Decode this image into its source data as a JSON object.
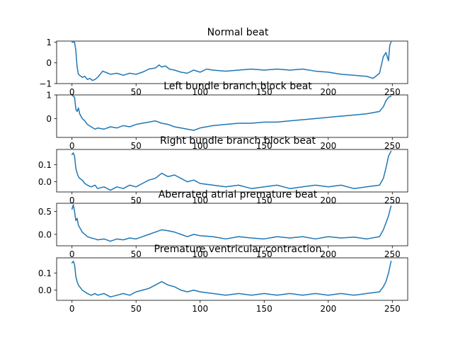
{
  "chart_data": [
    {
      "type": "line",
      "title": "Normal beat",
      "xlim": [
        -12,
        262
      ],
      "ylim": [
        -1.0,
        1.05
      ],
      "xticks": [
        0,
        50,
        100,
        150,
        200,
        250
      ],
      "xtick_labels": [
        "0",
        "50",
        "100",
        "150",
        "200",
        "250"
      ],
      "yticks": [
        -1,
        0,
        1
      ],
      "ytick_labels": [
        "−1",
        "0",
        "1"
      ],
      "grid": false,
      "series": [
        {
          "color": "#1f77b4",
          "x": [
            0,
            1,
            2,
            3,
            4,
            5,
            6,
            8,
            10,
            12,
            14,
            16,
            18,
            20,
            22,
            24,
            26,
            28,
            30,
            35,
            40,
            45,
            50,
            55,
            60,
            65,
            68,
            70,
            73,
            76,
            80,
            85,
            90,
            95,
            100,
            105,
            110,
            120,
            130,
            140,
            150,
            160,
            170,
            180,
            190,
            200,
            210,
            220,
            230,
            235,
            240,
            243,
            245,
            247,
            248,
            249
          ],
          "y": [
            1.0,
            1.0,
            1.0,
            0.6,
            -0.2,
            -0.55,
            -0.6,
            -0.7,
            -0.65,
            -0.8,
            -0.75,
            -0.85,
            -0.8,
            -0.7,
            -0.55,
            -0.4,
            -0.45,
            -0.5,
            -0.55,
            -0.5,
            -0.6,
            -0.5,
            -0.55,
            -0.45,
            -0.3,
            -0.25,
            -0.1,
            -0.2,
            -0.15,
            -0.3,
            -0.35,
            -0.45,
            -0.5,
            -0.35,
            -0.45,
            -0.3,
            -0.35,
            -0.4,
            -0.35,
            -0.3,
            -0.35,
            -0.3,
            -0.35,
            -0.3,
            -0.4,
            -0.45,
            -0.55,
            -0.6,
            -0.65,
            -0.75,
            -0.5,
            0.3,
            0.5,
            0.1,
            0.85,
            1.0
          ]
        }
      ]
    },
    {
      "type": "line",
      "title": "Left bundle branch block beat",
      "xlim": [
        -12,
        262
      ],
      "ylim": [
        -0.8,
        1.0
      ],
      "xticks": [
        0,
        50,
        100,
        150,
        200,
        250
      ],
      "xtick_labels": [
        "0",
        "50",
        "100",
        "150",
        "200",
        "250"
      ],
      "yticks": [
        0,
        1
      ],
      "ytick_labels": [
        "0",
        "1"
      ],
      "grid": false,
      "series": [
        {
          "color": "#1f77b4",
          "x": [
            0,
            1,
            2,
            3,
            4,
            5,
            6,
            8,
            10,
            12,
            15,
            18,
            20,
            25,
            30,
            35,
            40,
            45,
            50,
            55,
            60,
            65,
            70,
            75,
            80,
            85,
            90,
            95,
            100,
            110,
            120,
            130,
            140,
            150,
            160,
            170,
            180,
            190,
            200,
            210,
            220,
            230,
            240,
            243,
            245,
            247,
            249
          ],
          "y": [
            1.0,
            0.95,
            0.9,
            0.4,
            0.3,
            0.45,
            0.2,
            0.0,
            -0.1,
            -0.25,
            -0.35,
            -0.45,
            -0.4,
            -0.45,
            -0.35,
            -0.4,
            -0.3,
            -0.35,
            -0.25,
            -0.2,
            -0.15,
            -0.1,
            -0.2,
            -0.25,
            -0.35,
            -0.4,
            -0.45,
            -0.5,
            -0.4,
            -0.3,
            -0.25,
            -0.2,
            -0.2,
            -0.15,
            -0.15,
            -0.1,
            -0.05,
            0.0,
            0.05,
            0.1,
            0.15,
            0.2,
            0.3,
            0.5,
            0.75,
            0.9,
            0.95
          ]
        }
      ]
    },
    {
      "type": "line",
      "title": "Right bundle branch block beat",
      "xlim": [
        -12,
        262
      ],
      "ylim": [
        -0.06,
        0.19
      ],
      "xticks": [
        0,
        50,
        100,
        150,
        200,
        250
      ],
      "xtick_labels": [
        "0",
        "50",
        "100",
        "150",
        "200",
        "250"
      ],
      "yticks": [
        0.0,
        0.1
      ],
      "ytick_labels": [
        "0.0",
        "0.1"
      ],
      "grid": false,
      "series": [
        {
          "color": "#1f77b4",
          "x": [
            0,
            1,
            2,
            3,
            4,
            5,
            6,
            8,
            10,
            12,
            15,
            18,
            20,
            25,
            30,
            35,
            40,
            45,
            50,
            55,
            60,
            65,
            70,
            75,
            80,
            85,
            90,
            95,
            100,
            110,
            120,
            130,
            140,
            150,
            160,
            170,
            180,
            190,
            200,
            210,
            220,
            230,
            240,
            243,
            245,
            247,
            249
          ],
          "y": [
            0.16,
            0.17,
            0.15,
            0.08,
            0.05,
            0.03,
            0.02,
            0.01,
            -0.01,
            -0.02,
            -0.03,
            -0.02,
            -0.04,
            -0.03,
            -0.05,
            -0.03,
            -0.04,
            -0.02,
            -0.03,
            -0.01,
            0.01,
            0.02,
            0.05,
            0.03,
            0.04,
            0.02,
            0.0,
            0.01,
            -0.01,
            -0.02,
            -0.03,
            -0.02,
            -0.04,
            -0.03,
            -0.02,
            -0.04,
            -0.03,
            -0.02,
            -0.03,
            -0.02,
            -0.04,
            -0.03,
            -0.02,
            0.02,
            0.08,
            0.15,
            0.18
          ]
        }
      ]
    },
    {
      "type": "line",
      "title": "Aberrated atrial premature beat",
      "xlim": [
        -12,
        262
      ],
      "ylim": [
        -0.25,
        0.68
      ],
      "xticks": [
        0,
        50,
        100,
        150,
        200,
        250
      ],
      "xtick_labels": [
        "0",
        "50",
        "100",
        "150",
        "200",
        "250"
      ],
      "yticks": [
        0.0,
        0.5
      ],
      "ytick_labels": [
        "0.0",
        "0.5"
      ],
      "grid": false,
      "series": [
        {
          "color": "#1f77b4",
          "x": [
            0,
            1,
            2,
            3,
            4,
            5,
            6,
            8,
            10,
            12,
            15,
            18,
            20,
            25,
            30,
            35,
            40,
            45,
            50,
            55,
            60,
            65,
            70,
            75,
            80,
            85,
            90,
            95,
            100,
            110,
            120,
            130,
            140,
            150,
            160,
            170,
            180,
            190,
            200,
            210,
            220,
            230,
            240,
            243,
            245,
            247,
            249
          ],
          "y": [
            0.55,
            0.65,
            0.5,
            0.3,
            0.35,
            0.2,
            0.15,
            0.05,
            0.0,
            -0.05,
            -0.08,
            -0.1,
            -0.12,
            -0.1,
            -0.15,
            -0.1,
            -0.12,
            -0.08,
            -0.1,
            -0.05,
            0.0,
            0.05,
            0.1,
            0.08,
            0.05,
            0.0,
            -0.05,
            0.0,
            -0.03,
            -0.05,
            -0.1,
            -0.05,
            -0.08,
            -0.1,
            -0.05,
            -0.08,
            -0.05,
            -0.1,
            -0.05,
            -0.08,
            -0.06,
            -0.1,
            -0.05,
            0.1,
            0.25,
            0.4,
            0.62
          ]
        }
      ]
    },
    {
      "type": "line",
      "title": "Premature ventricular contraction",
      "xlim": [
        -12,
        262
      ],
      "ylim": [
        -0.06,
        0.19
      ],
      "xticks": [
        0,
        50,
        100,
        150,
        200,
        250
      ],
      "xtick_labels": [
        "0",
        "50",
        "100",
        "150",
        "200",
        "250"
      ],
      "yticks": [
        0.0,
        0.1
      ],
      "ytick_labels": [
        "0.0",
        "0.1"
      ],
      "grid": false,
      "series": [
        {
          "color": "#1f77b4",
          "x": [
            0,
            1,
            2,
            3,
            4,
            5,
            6,
            8,
            10,
            12,
            15,
            18,
            20,
            25,
            30,
            35,
            40,
            45,
            50,
            55,
            60,
            65,
            70,
            75,
            80,
            85,
            90,
            95,
            100,
            110,
            120,
            130,
            140,
            150,
            160,
            170,
            180,
            190,
            200,
            210,
            220,
            230,
            240,
            243,
            245,
            247,
            249
          ],
          "y": [
            0.16,
            0.17,
            0.15,
            0.08,
            0.05,
            0.03,
            0.02,
            0.0,
            -0.01,
            -0.02,
            -0.03,
            -0.02,
            -0.03,
            -0.02,
            -0.04,
            -0.03,
            -0.02,
            -0.03,
            -0.01,
            0.0,
            0.01,
            0.03,
            0.05,
            0.03,
            0.02,
            0.0,
            -0.01,
            0.0,
            -0.01,
            -0.02,
            -0.03,
            -0.02,
            -0.03,
            -0.02,
            -0.03,
            -0.02,
            -0.03,
            -0.02,
            -0.03,
            -0.02,
            -0.03,
            -0.02,
            -0.01,
            0.02,
            0.05,
            0.1,
            0.17
          ]
        }
      ]
    }
  ]
}
